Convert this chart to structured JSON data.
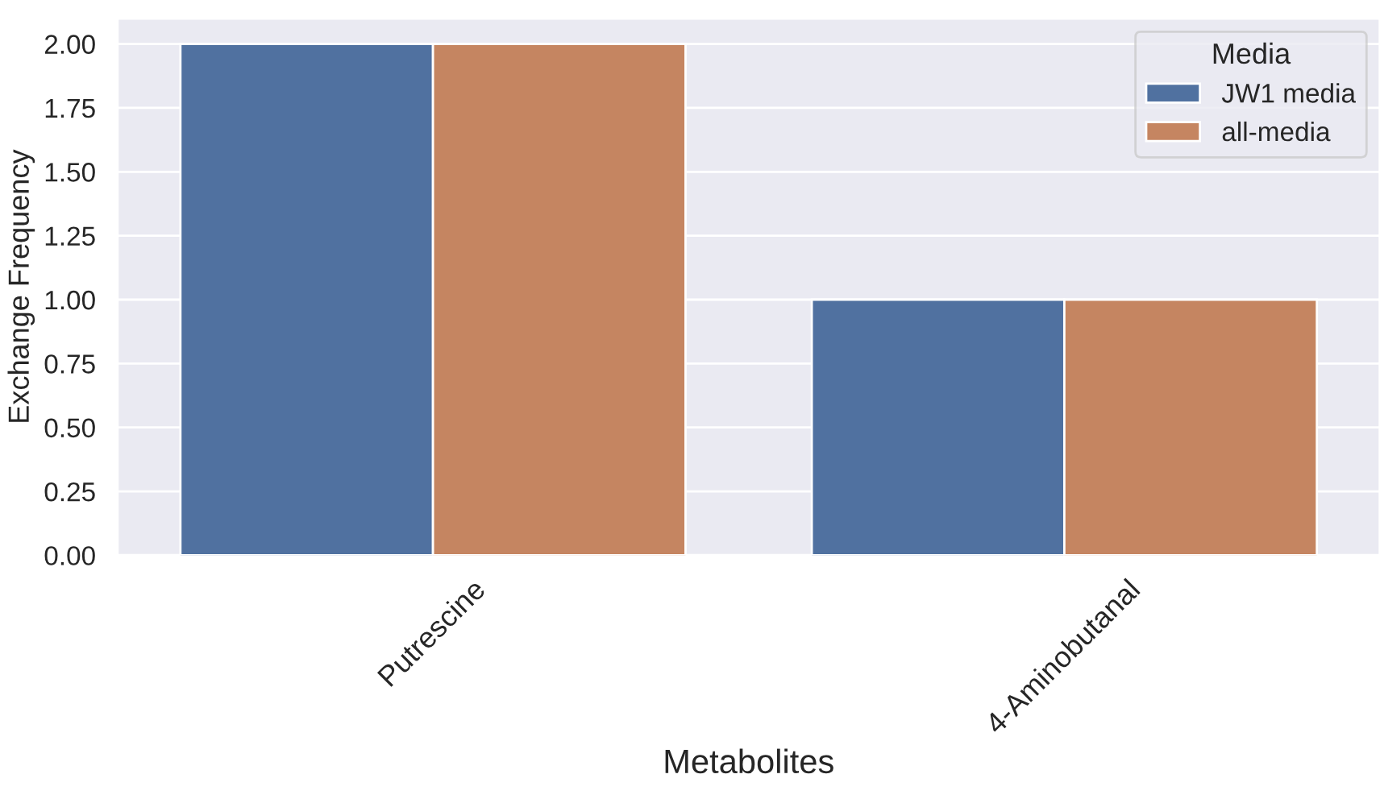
{
  "chart_data": {
    "type": "bar",
    "xlabel": "Metabolites",
    "ylabel": "Exchange Frequency",
    "legend_title": "Media",
    "categories": [
      "Putrescine",
      "4-Aminobutanal"
    ],
    "series": [
      {
        "name": "JW1 media",
        "color": "#5071a0",
        "values": [
          2,
          1
        ]
      },
      {
        "name": "all-media",
        "color": "#c58561",
        "values": [
          2,
          1
        ]
      }
    ],
    "ylim": [
      0,
      2.1
    ],
    "yticks": [
      {
        "value": 0,
        "label": "0.00"
      },
      {
        "value": 0.25,
        "label": "0.25"
      },
      {
        "value": 0.5,
        "label": "0.50"
      },
      {
        "value": 0.75,
        "label": "0.75"
      },
      {
        "value": 1,
        "label": "1.00"
      },
      {
        "value": 1.25,
        "label": "1.25"
      },
      {
        "value": 1.5,
        "label": "1.50"
      },
      {
        "value": 1.75,
        "label": "1.75"
      },
      {
        "value": 2,
        "label": "2.00"
      }
    ],
    "grid": "y",
    "legend": "top right"
  }
}
